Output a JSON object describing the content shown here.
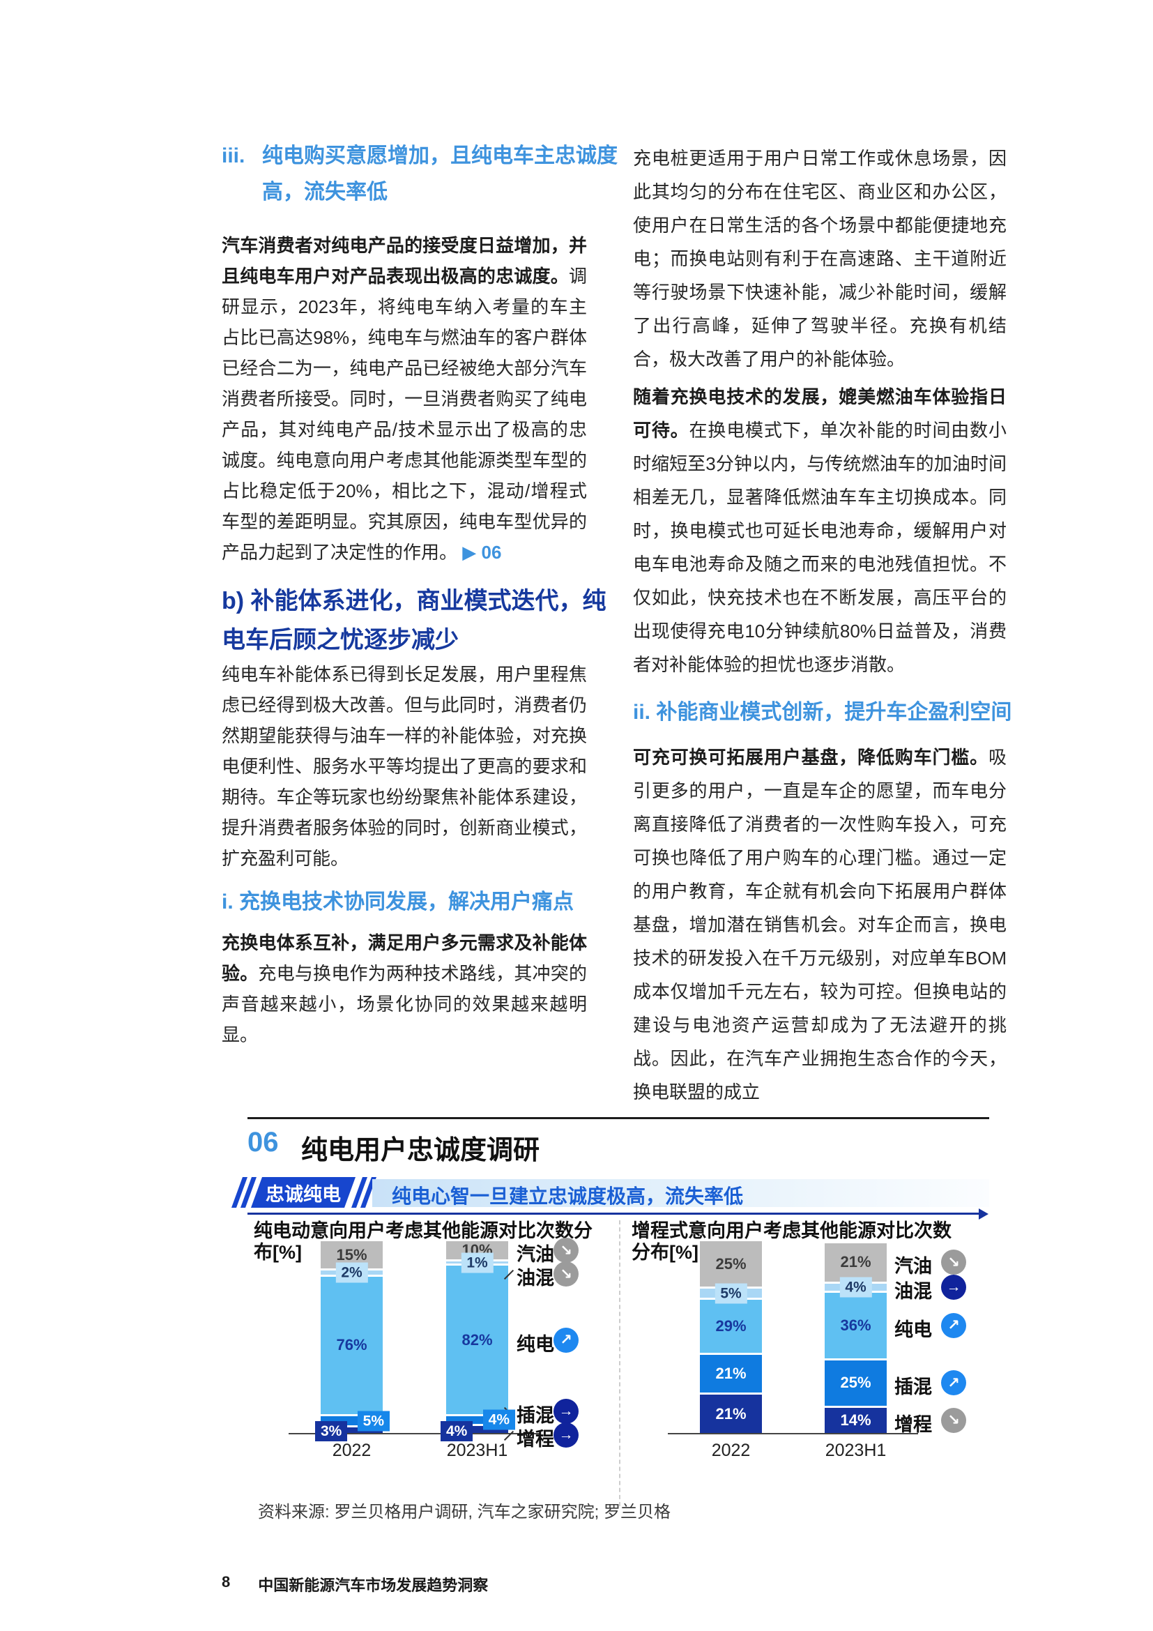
{
  "colors": {
    "accent_blue": "#3E93DE",
    "navy_heading": "#16399E",
    "badge_blue": "#1746CE",
    "banner_text_blue": "#1A5FD4",
    "seg_gray": "#BCBCBC",
    "seg_pale_blue": "#A9D7F5",
    "seg_sky_blue": "#5FC0F2",
    "seg_bright_blue": "#0F7BE0",
    "seg_dark_navy": "#16339E"
  },
  "left": {
    "h3_num": "iii.",
    "h3_text": "纯电购买意愿增加，且纯电车主忠诚度高，流失率低",
    "p1_lead": "汽车消费者对纯电产品的接受度日益增加，并且纯电车用户对产品表现出极高的忠诚度。",
    "p1_rest": "调研显示，2023年，将纯电车纳入考量的车主占比已高达98%，纯电车与燃油车的客户群体已经合二为一，纯电产品已经被绝大部分汽车消费者所接受。同时，一旦消费者购买了纯电产品，其对纯电产品/技术显示出了极高的忠诚度。纯电意向用户考虑其他能源类型车型的占比稳定低于20%，相比之下，混动/增程式车型的差距明显。究其原因，纯电车型优异的产品力起到了决定性的作用。",
    "ref_arrow": "▶",
    "ref_num": "06",
    "hb": "b) 补能体系进化，商业模式迭代，纯电车后顾之忧逐步减少",
    "p2": "纯电车补能体系已得到长足发展，用户里程焦虑已经得到极大改善。但与此同时，消费者仍然期望能获得与油车一样的补能体验，对充换电便利性、服务水平等均提出了更高的要求和期待。车企等玩家也纷纷聚焦补能体系建设，提升消费者服务体验的同时，创新商业模式，扩充盈利可能。",
    "hi": "i. 充换电技术协同发展，解决用户痛点",
    "p3_lead": "充换电体系互补，满足用户多元需求及补能体验。",
    "p3_rest": "充电与换电作为两种技术路线，其冲突的声音越来越小，场景化协同的效果越来越明显。"
  },
  "right": {
    "p1": "充电桩更适用于用户日常工作或休息场景，因此其均匀的分布在住宅区、商业区和办公区，使用户在日常生活的各个场景中都能便捷地充电；而换电站则有利于在高速路、主干道附近等行驶场景下快速补能，减少补能时间，缓解了出行高峰，延伸了驾驶半径。充换有机结合，极大改善了用户的补能体验。",
    "p2_lead": "随着充换电技术的发展，媲美燃油车体验指日可待。",
    "p2_rest": "在换电模式下，单次补能的时间由数小时缩短至3分钟以内，与传统燃油车的加油时间相差无几，显著降低燃油车车主切换成本。同时，换电模式也可延长电池寿命，缓解用户对电车电池寿命及随之而来的电池残值担忧。不仅如此，快充技术也在不断发展，高压平台的出现使得充电10分钟续航80%日益普及，消费者对补能体验的担忧也逐步消散。",
    "hii": "ii. 补能商业模式创新，提升车企盈利空间",
    "p3_lead": "可充可换可拓展用户基盘，降低购车门槛。",
    "p3_rest": "吸引更多的用户，一直是车企的愿望，而车电分离直接降低了消费者的一次性购车投入，可充可换也降低了用户购车的心理门槛。通过一定的用户教育，车企就有机会向下拓展用户群体基盘，增加潜在销售机会。对车企而言，换电技术的研发投入在千万元级别，对应单车BOM成本仅增加千元左右，较为可控。但换电站的建设与电池资产运营却成为了无法避开的挑战。因此，在汽车产业拥抱生态合作的今天，换电联盟的成立"
  },
  "figure": {
    "number": "06",
    "title": "纯电用户忠诚度调研",
    "badge": "忠诚纯电",
    "banner": "纯电心智一旦建立忠诚度极高，流失率低",
    "source": "资料来源: 罗兰贝格用户调研, 汽车之家研究院; 罗兰贝格"
  },
  "footer": {
    "page": "8",
    "title": "中国新能源汽车市场发展趋势洞察"
  },
  "chart_data": [
    {
      "type": "bar",
      "stacked": true,
      "title": "纯电动意向用户考虑其他能源对比次数分布[%]",
      "categories": [
        "2022",
        "2023H1"
      ],
      "ylim": [
        0,
        100
      ],
      "legend_position": "right",
      "series": [
        {
          "name": "汽油",
          "values": [
            15,
            10
          ],
          "color": "#BCBCBC",
          "label_style": "plain",
          "label_color": "#3c3c3c"
        },
        {
          "name": "油混",
          "values": [
            2,
            1
          ],
          "color": "#A9D7F5",
          "label_style": "box",
          "box_color": "#BCE2F9",
          "label_color": "#1e3a66",
          "shift": "center"
        },
        {
          "name": "纯电",
          "values": [
            76,
            82
          ],
          "color": "#5FC0F2",
          "label_style": "plain",
          "label_color": "#17379E"
        },
        {
          "name": "插混",
          "values": [
            5,
            4
          ],
          "color": "#0F7BE0",
          "label_style": "box",
          "box_color": "#1787EA",
          "label_color": "#ffffff",
          "shift": "right"
        },
        {
          "name": "增程",
          "values": [
            3,
            4
          ],
          "color": "#16339E",
          "label_style": "box",
          "box_color": "#16339E",
          "label_color": "#ffffff",
          "shift": "left-low"
        }
      ],
      "legend": [
        {
          "label": "汽油",
          "tone": "gray",
          "trend": "down"
        },
        {
          "label": "油混",
          "tone": "gray",
          "trend": "down"
        },
        {
          "label": "纯电",
          "tone": "blue",
          "trend": "up"
        },
        {
          "label": "插混",
          "tone": "navy",
          "trend": "flat"
        },
        {
          "label": "增程",
          "tone": "navy",
          "trend": "flat"
        }
      ]
    },
    {
      "type": "bar",
      "stacked": true,
      "title": "增程式意向用户考虑其他能源对比次数分布[%]",
      "categories": [
        "2022",
        "2023H1"
      ],
      "ylim": [
        0,
        100
      ],
      "legend_position": "right",
      "series": [
        {
          "name": "汽油",
          "values": [
            25,
            21
          ],
          "color": "#BCBCBC",
          "label_style": "plain",
          "label_color": "#3c3c3c"
        },
        {
          "name": "油混",
          "values": [
            5,
            4
          ],
          "color": "#A9D7F5",
          "label_style": "box",
          "box_color": "#BCE2F9",
          "label_color": "#1e3a66",
          "shift": "center"
        },
        {
          "name": "纯电",
          "values": [
            29,
            36
          ],
          "color": "#5FC0F2",
          "label_style": "plain",
          "label_color": "#17379E"
        },
        {
          "name": "插混",
          "values": [
            21,
            25
          ],
          "color": "#0F7BE0",
          "label_style": "plain",
          "label_color": "#ffffff"
        },
        {
          "name": "增程",
          "values": [
            21,
            14
          ],
          "color": "#16339E",
          "label_style": "plain",
          "label_color": "#ffffff"
        }
      ],
      "legend": [
        {
          "label": "汽油",
          "tone": "gray",
          "trend": "down"
        },
        {
          "label": "油混",
          "tone": "navy",
          "trend": "flat"
        },
        {
          "label": "纯电",
          "tone": "blue",
          "trend": "up"
        },
        {
          "label": "插混",
          "tone": "blue",
          "trend": "up"
        },
        {
          "label": "增程",
          "tone": "gray",
          "trend": "down"
        }
      ]
    }
  ]
}
